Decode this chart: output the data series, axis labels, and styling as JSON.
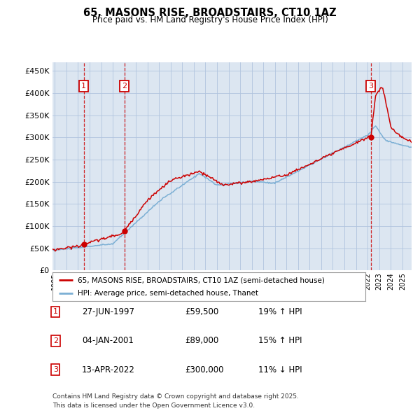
{
  "title": "65, MASONS RISE, BROADSTAIRS, CT10 1AZ",
  "subtitle": "Price paid vs. HM Land Registry's House Price Index (HPI)",
  "ytick_values": [
    0,
    50000,
    100000,
    150000,
    200000,
    250000,
    300000,
    350000,
    400000,
    450000
  ],
  "ylim": [
    0,
    470000
  ],
  "xlim_start": 1994.8,
  "xlim_end": 2025.8,
  "transactions": [
    {
      "num": 1,
      "date_str": "27-JUN-1997",
      "date_x": 1997.49,
      "price": 59500
    },
    {
      "num": 2,
      "date_str": "04-JAN-2001",
      "date_x": 2001.01,
      "price": 89000
    },
    {
      "num": 3,
      "date_str": "13-APR-2022",
      "date_x": 2022.28,
      "price": 300000
    }
  ],
  "legend_label_red": "65, MASONS RISE, BROADSTAIRS, CT10 1AZ (semi-detached house)",
  "legend_label_blue": "HPI: Average price, semi-detached house, Thanet",
  "footnote1": "Contains HM Land Registry data © Crown copyright and database right 2025.",
  "footnote2": "This data is licensed under the Open Government Licence v3.0.",
  "background_color": "#ffffff",
  "plot_bg_color": "#dce6f1",
  "grid_color": "#b0c4de",
  "red_color": "#cc0000",
  "blue_color": "#7bafd4",
  "dashed_color": "#cc0000",
  "table_rows": [
    [
      "1",
      "27-JUN-1997",
      "£59,500",
      "19% ↑ HPI"
    ],
    [
      "2",
      "04-JAN-2001",
      "£89,000",
      "15% ↑ HPI"
    ],
    [
      "3",
      "13-APR-2022",
      "£300,000",
      "11% ↓ HPI"
    ]
  ]
}
